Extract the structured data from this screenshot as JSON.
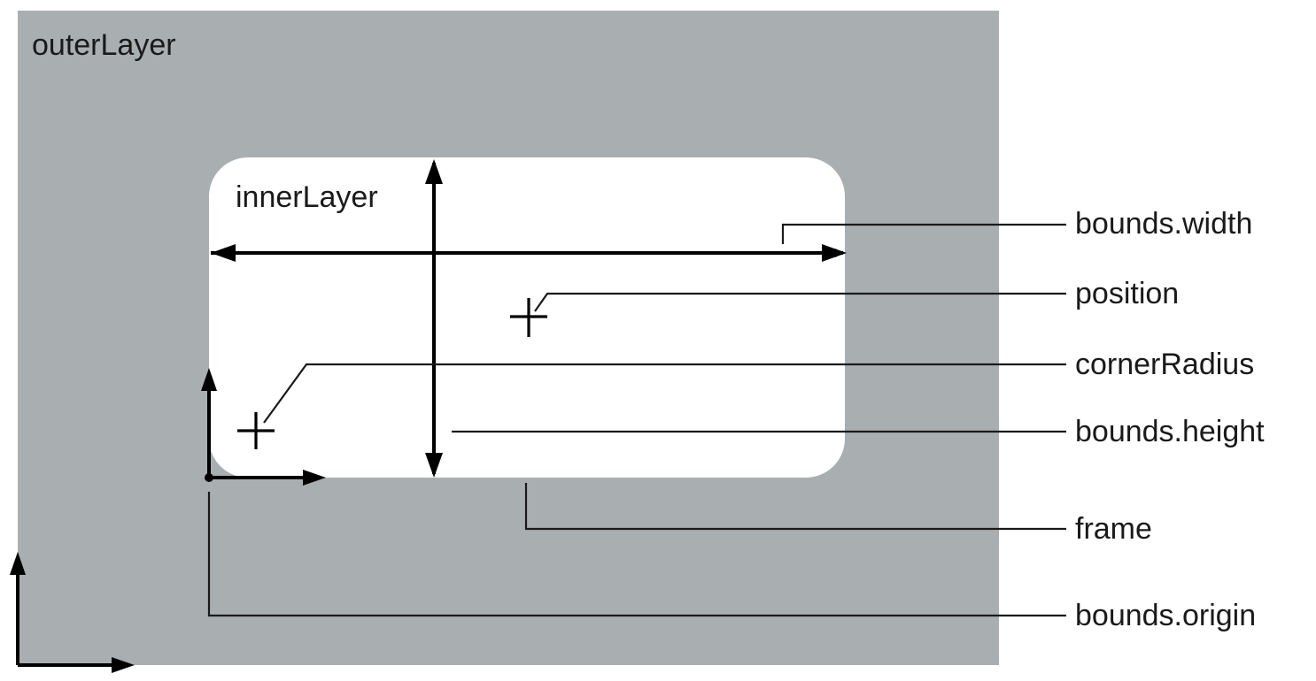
{
  "layers": {
    "outer": {
      "label": "outerLayer",
      "fill": "#a9aeb1"
    },
    "inner": {
      "label": "innerLayer",
      "fill": "#ffffff"
    }
  },
  "annotations": [
    {
      "id": "bounds-width",
      "label": "bounds.width"
    },
    {
      "id": "position",
      "label": "position"
    },
    {
      "id": "corner-radius",
      "label": "cornerRadius"
    },
    {
      "id": "bounds-height",
      "label": "bounds.height"
    },
    {
      "id": "frame",
      "label": "frame"
    },
    {
      "id": "bounds-origin",
      "label": "bounds.origin"
    }
  ],
  "colors": {
    "ink": "#1a1a1a",
    "outer_layer": "#a9aeb1",
    "inner_layer": "#ffffff"
  }
}
